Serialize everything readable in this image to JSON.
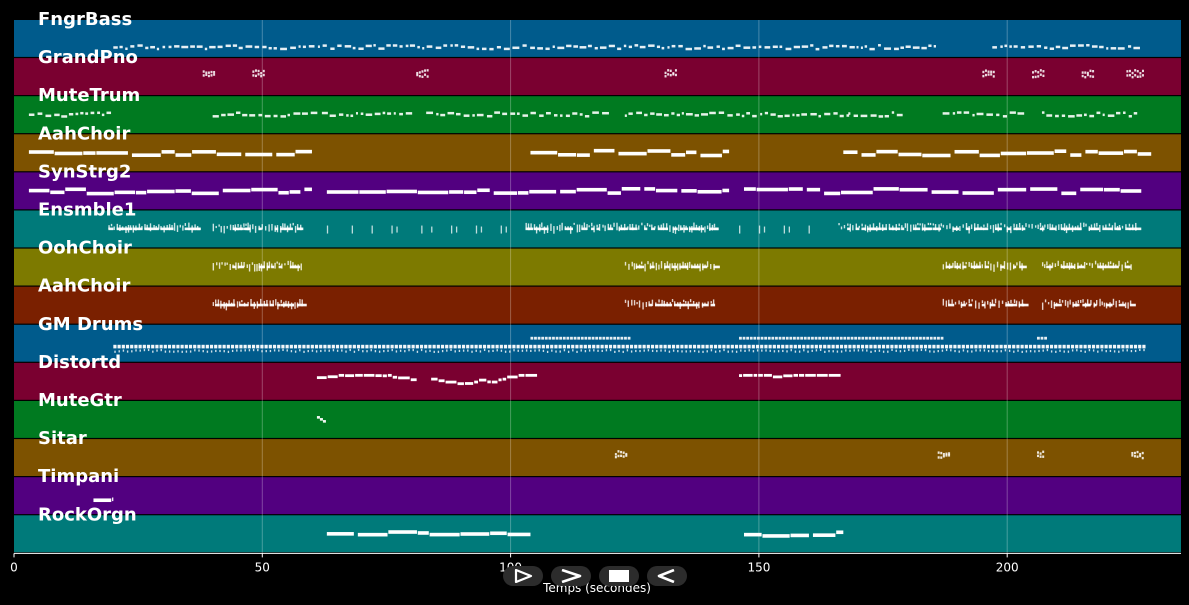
{
  "timeline": {
    "x_min": 0,
    "x_max": 235,
    "ticks": [
      0,
      50,
      100,
      150,
      200
    ],
    "xlabel": "Temps (secondes)"
  },
  "tracks": [
    {
      "name": "FngrBass",
      "color": "#005b8c"
    },
    {
      "name": "GrandPno",
      "color": "#7a0030"
    },
    {
      "name": "MuteTrum",
      "color": "#007a20"
    },
    {
      "name": "AahChoir",
      "color": "#7d5200"
    },
    {
      "name": "SynStrg2",
      "color": "#520080"
    },
    {
      "name": "Ensmble1",
      "color": "#007a7a"
    },
    {
      "name": "OohChoir",
      "color": "#7d7a00"
    },
    {
      "name": "AahChoir",
      "color": "#7a2000"
    },
    {
      "name": "GM Drums",
      "color": "#005b8c"
    },
    {
      "name": "Distortd",
      "color": "#7a0030"
    },
    {
      "name": "MuteGtr",
      "color": "#007a20"
    },
    {
      "name": "Sitar",
      "color": "#7d5200"
    },
    {
      "name": "Timpani",
      "color": "#520080"
    },
    {
      "name": "RockOrgn",
      "color": "#007a7a"
    }
  ],
  "note_segments": [
    [
      [
        20,
        186,
        "dash"
      ],
      [
        197,
        226,
        "dash"
      ]
    ],
    [
      [
        38,
        40,
        "chord"
      ],
      [
        48,
        50,
        "chord"
      ],
      [
        81,
        83,
        "chord"
      ],
      [
        131,
        133,
        "chord"
      ],
      [
        195,
        197,
        "chord"
      ],
      [
        205,
        207,
        "chord"
      ],
      [
        215,
        217,
        "chord"
      ],
      [
        224,
        227,
        "chord"
      ]
    ],
    [
      [
        3,
        19,
        "dash"
      ],
      [
        40,
        60,
        "dash"
      ],
      [
        62,
        80,
        "dash"
      ],
      [
        83,
        104,
        "dash"
      ],
      [
        104,
        120,
        "dash"
      ],
      [
        123,
        140,
        "dash"
      ],
      [
        140,
        168,
        "dash"
      ],
      [
        168,
        178,
        "dash"
      ],
      [
        187,
        203,
        "dash"
      ],
      [
        207,
        226,
        "dash"
      ]
    ],
    [
      [
        3,
        60,
        "sustain"
      ],
      [
        104,
        144,
        "sustain"
      ],
      [
        167,
        229,
        "sustain"
      ]
    ],
    [
      [
        3,
        60,
        "sustain"
      ],
      [
        63,
        144,
        "sustain"
      ],
      [
        147,
        227,
        "sustain"
      ]
    ],
    [
      [
        19,
        37,
        "dense"
      ],
      [
        40,
        58,
        "dense"
      ],
      [
        63,
        63,
        "spike"
      ],
      [
        68,
        68,
        "spike"
      ],
      [
        72,
        72,
        "spike"
      ],
      [
        76,
        77,
        "spike"
      ],
      [
        82,
        84,
        "spike"
      ],
      [
        88,
        89,
        "spike"
      ],
      [
        93,
        94,
        "spike"
      ],
      [
        98,
        99,
        "spike"
      ],
      [
        103,
        141,
        "dense"
      ],
      [
        146,
        146,
        "spike"
      ],
      [
        150,
        151,
        "spike"
      ],
      [
        155,
        156,
        "spike"
      ],
      [
        160,
        160,
        "spike"
      ],
      [
        166,
        226,
        "dense"
      ]
    ],
    [
      [
        40,
        58,
        "dense"
      ],
      [
        123,
        141,
        "dense"
      ],
      [
        187,
        203,
        "dense"
      ],
      [
        207,
        225,
        "dense"
      ]
    ],
    [
      [
        40,
        58,
        "dense"
      ],
      [
        123,
        141,
        "dense"
      ],
      [
        187,
        203,
        "dense"
      ],
      [
        207,
        225,
        "dense"
      ]
    ],
    [
      [
        20,
        228,
        "drums"
      ],
      [
        104,
        124,
        "upper"
      ],
      [
        146,
        187,
        "upper"
      ],
      [
        206,
        208,
        "upper"
      ]
    ],
    [
      [
        61,
        80,
        "riff"
      ],
      [
        84,
        103,
        "riff"
      ],
      [
        146,
        165,
        "riff"
      ]
    ],
    [
      [
        61,
        63,
        "short"
      ]
    ],
    [
      [
        121,
        123,
        "chord"
      ],
      [
        186,
        188,
        "chord"
      ],
      [
        206,
        207,
        "chord"
      ],
      [
        225,
        227,
        "chord"
      ]
    ],
    [
      [
        16,
        20,
        "sustain"
      ]
    ],
    [
      [
        63,
        104,
        "sustain"
      ],
      [
        147,
        167,
        "sustain"
      ]
    ]
  ],
  "controls": [
    {
      "name": "play-button",
      "icon": "play-outline-icon"
    },
    {
      "name": "forward-button",
      "icon": "chevron-right-icon"
    },
    {
      "name": "stop-button",
      "icon": "stop-icon"
    },
    {
      "name": "back-button",
      "icon": "chevron-left-icon"
    }
  ]
}
